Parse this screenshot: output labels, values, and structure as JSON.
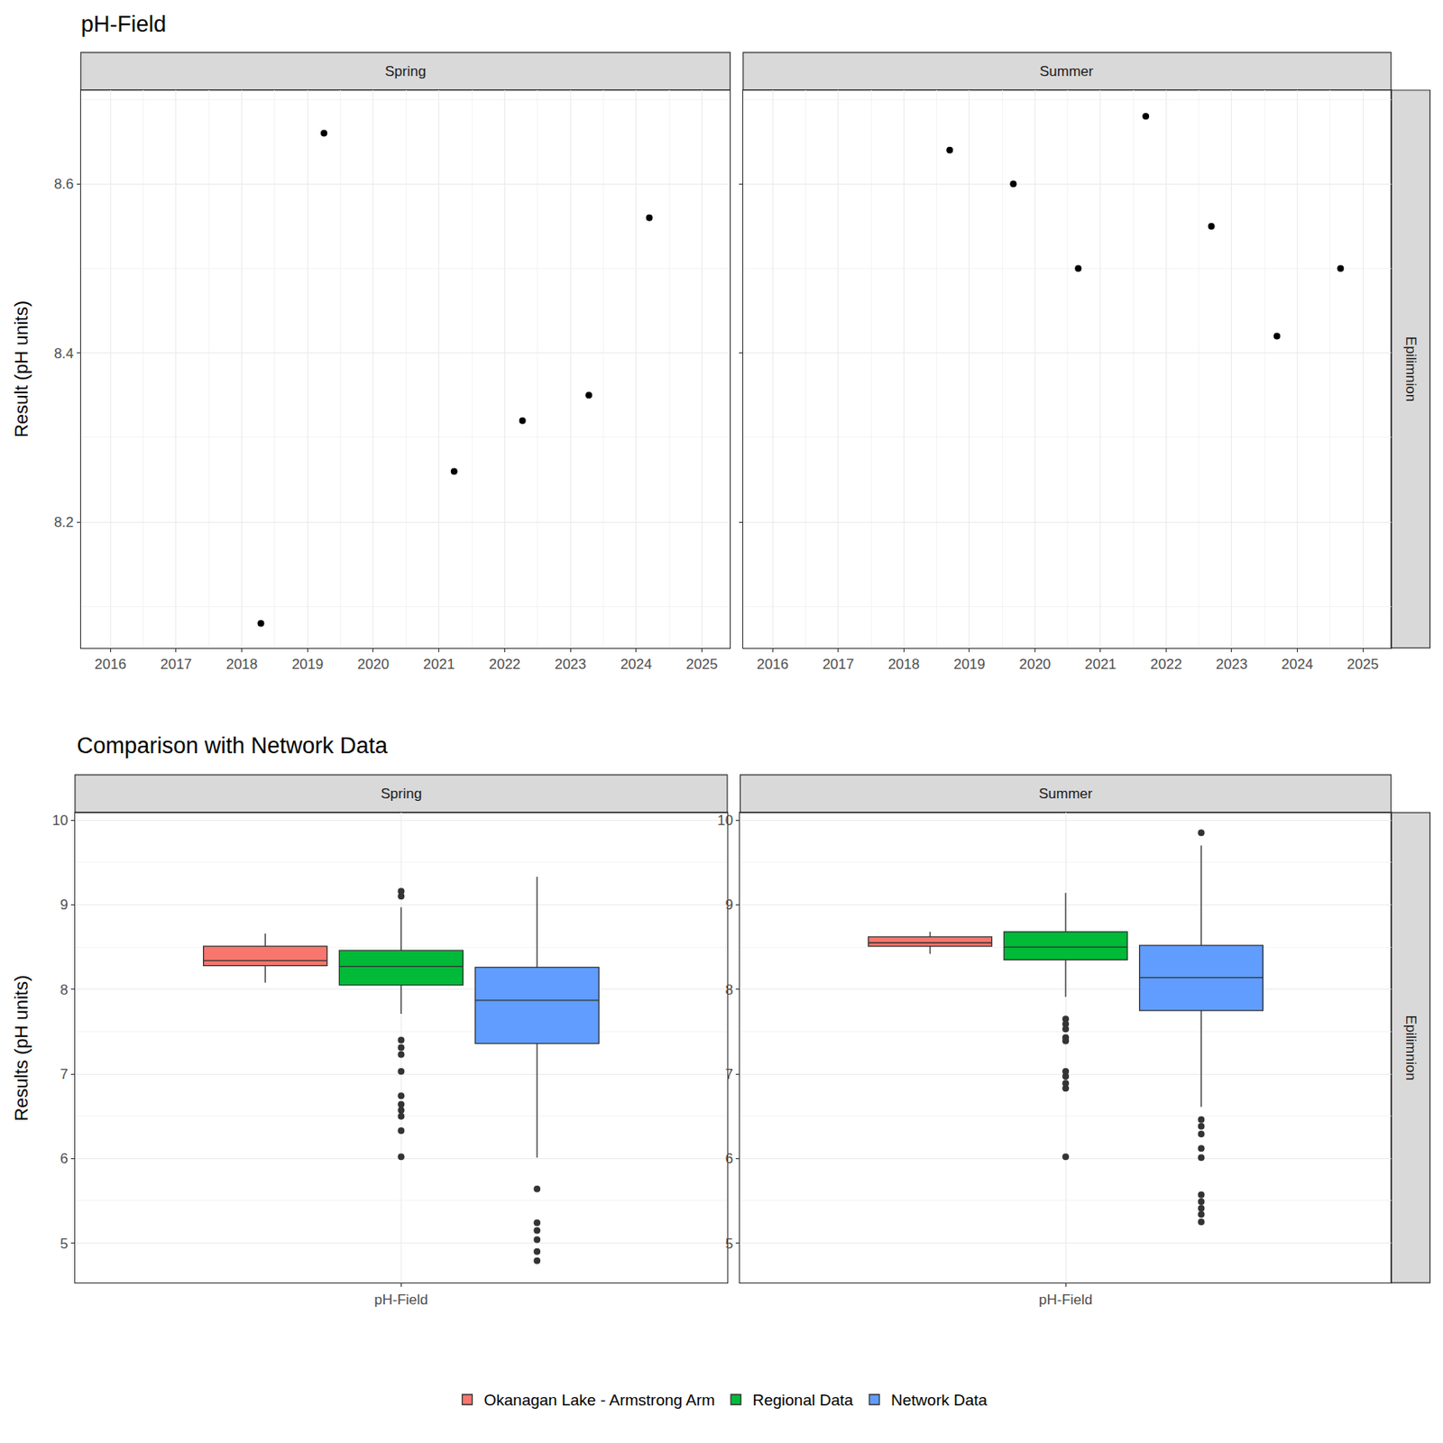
{
  "chart_data": [
    {
      "type": "scatter",
      "title": "pH-Field",
      "y_label": "Result (pH units)",
      "strip": "Epilimnion",
      "color": "#000000",
      "grid": true,
      "xlim": [
        2015.55,
        2025.43
      ],
      "xticks": [
        2016,
        2017,
        2018,
        2019,
        2020,
        2021,
        2022,
        2023,
        2024,
        2025
      ],
      "ylim": [
        8.051,
        8.711
      ],
      "yticks": [
        8.2,
        8.4,
        8.6
      ],
      "panels": [
        {
          "name": "Spring",
          "x": [
            2018.29,
            2019.25,
            2021.23,
            2022.27,
            2023.28,
            2024.2
          ],
          "values": [
            8.08,
            8.66,
            8.26,
            8.32,
            8.35,
            8.56
          ]
        },
        {
          "name": "Summer",
          "x": [
            2018.7,
            2019.67,
            2020.66,
            2021.69,
            2022.69,
            2023.69,
            2024.66
          ],
          "values": [
            8.64,
            8.6,
            8.5,
            8.68,
            8.55,
            8.42,
            8.5
          ]
        }
      ]
    },
    {
      "type": "box",
      "title": "Comparison with Network Data",
      "y_label": "Results (pH units)",
      "strip": "Epilimnion",
      "categories": [
        "pH-Field"
      ],
      "grid": true,
      "legend": "bottom",
      "ylim": [
        4.53,
        10.09
      ],
      "yticks": [
        5,
        6,
        7,
        8,
        9,
        10
      ],
      "panels": [
        {
          "name": "Spring",
          "series": [
            {
              "name": "Okanagan Lake - Armstrong Arm",
              "color": "#f8766d",
              "q1": 8.28,
              "median": 8.34,
              "q3": 8.51,
              "lower_whisker": 8.08,
              "upper_whisker": 8.66,
              "outliers": []
            },
            {
              "name": "Regional Data",
              "color": "#00ba38",
              "q1": 8.05,
              "median": 8.27,
              "q3": 8.46,
              "lower_whisker": 7.71,
              "upper_whisker": 8.97,
              "outliers": [
                9.16,
                9.1,
                7.4,
                7.31,
                7.23,
                7.03,
                6.74,
                6.64,
                6.57,
                6.5,
                6.33,
                6.02
              ]
            },
            {
              "name": "Network Data",
              "color": "#619cff",
              "q1": 7.36,
              "median": 7.87,
              "q3": 8.26,
              "lower_whisker": 6.01,
              "upper_whisker": 9.33,
              "outliers": [
                5.64,
                5.24,
                5.15,
                5.04,
                4.9,
                4.79
              ]
            }
          ]
        },
        {
          "name": "Summer",
          "series": [
            {
              "name": "Okanagan Lake - Armstrong Arm",
              "color": "#f8766d",
              "q1": 8.51,
              "median": 8.55,
              "q3": 8.62,
              "lower_whisker": 8.42,
              "upper_whisker": 8.68,
              "outliers": []
            },
            {
              "name": "Regional Data",
              "color": "#00ba38",
              "q1": 8.35,
              "median": 8.5,
              "q3": 8.68,
              "lower_whisker": 7.91,
              "upper_whisker": 9.14,
              "outliers": [
                7.65,
                7.59,
                7.53,
                7.43,
                7.39,
                7.03,
                6.97,
                6.89,
                6.83,
                6.02
              ]
            },
            {
              "name": "Network Data",
              "color": "#619cff",
              "q1": 7.75,
              "median": 8.14,
              "q3": 8.52,
              "lower_whisker": 6.61,
              "upper_whisker": 9.7,
              "outliers": [
                9.85,
                6.46,
                6.38,
                6.29,
                6.12,
                6.01,
                5.57,
                5.49,
                5.41,
                5.34,
                5.25
              ]
            }
          ]
        }
      ]
    }
  ]
}
